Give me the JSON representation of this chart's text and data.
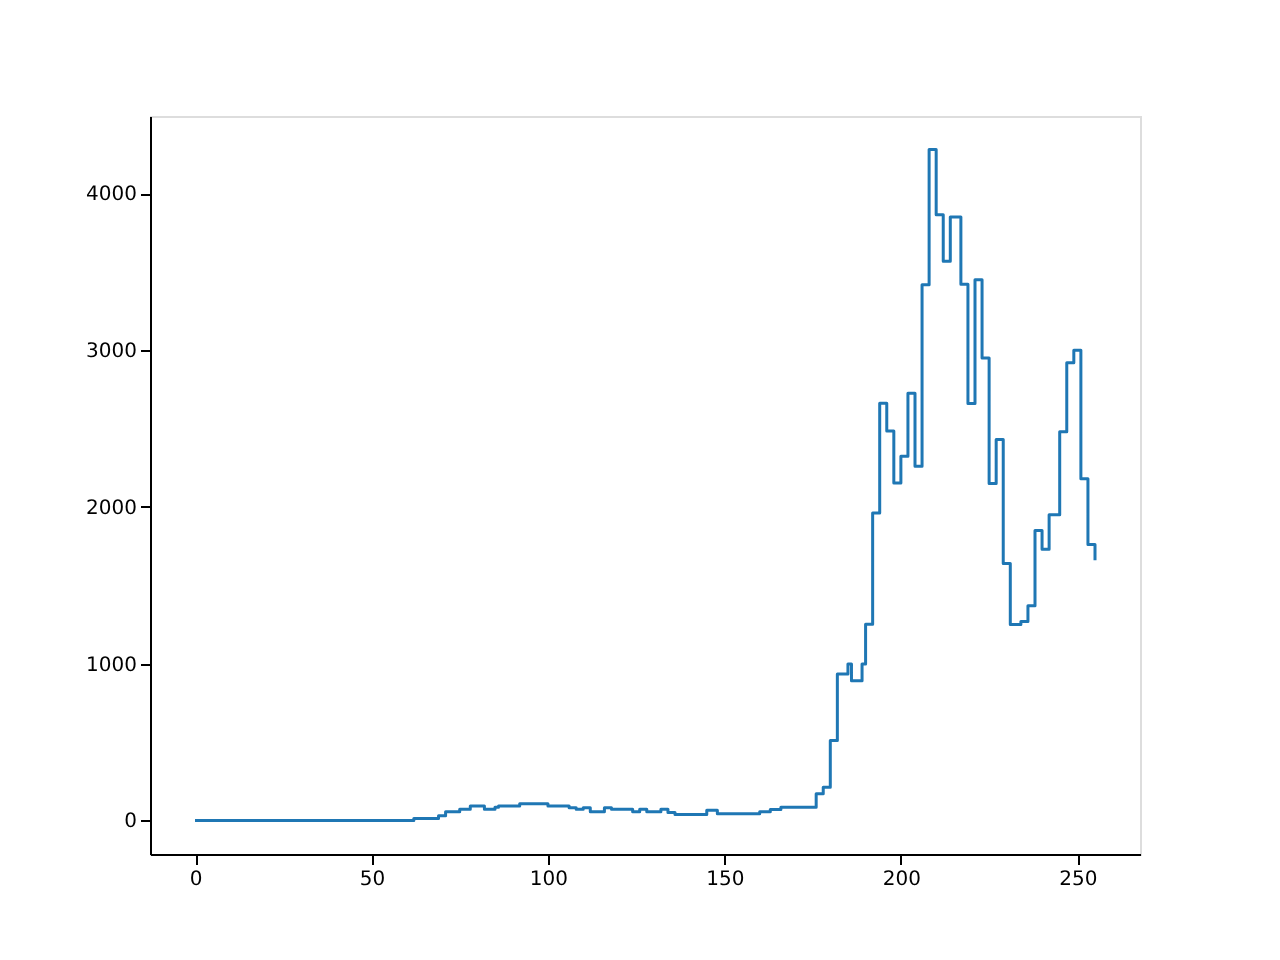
{
  "chart_data": {
    "type": "step",
    "xlim": [
      -12.75,
      267.75
    ],
    "ylim": [
      -214,
      4494
    ],
    "xticks": [
      0,
      50,
      100,
      150,
      200,
      250
    ],
    "yticks": [
      0,
      1000,
      2000,
      3000,
      4000
    ],
    "grid": false,
    "line_style": "solid",
    "series": [
      {
        "color": "#1f77b4",
        "x": [
          0,
          62,
          69,
          71,
          75,
          78,
          82,
          85,
          86,
          92,
          100,
          106,
          108,
          110,
          112,
          116,
          118,
          124,
          126,
          128,
          132,
          134,
          136,
          145,
          148,
          160,
          163,
          166,
          176,
          178,
          180,
          182,
          185,
          186,
          189,
          190,
          192,
          194,
          196,
          198,
          200,
          202,
          204,
          206,
          208,
          210,
          212,
          214,
          217,
          219,
          221,
          223,
          225,
          227,
          229,
          231,
          234,
          236,
          238,
          240,
          242,
          245,
          247,
          249,
          251,
          253,
          255
        ],
        "values": [
          0,
          13,
          30,
          55,
          72,
          93,
          72,
          85,
          93,
          106,
          93,
          81,
          72,
          81,
          55,
          81,
          72,
          55,
          72,
          55,
          72,
          50,
          38,
          65,
          42,
          55,
          70,
          85,
          170,
          212,
          510,
          934,
          998,
          892,
          998,
          1252,
          1962,
          2662,
          2484,
          2153,
          2323,
          2726,
          2259,
          3418,
          4280,
          3864,
          3567,
          3850,
          3420,
          2660,
          3450,
          2950,
          2150,
          2430,
          1640,
          1250,
          1270,
          1370,
          1850,
          1730,
          1950,
          2480,
          2920,
          3000,
          2180,
          1760,
          1660
        ]
      }
    ]
  }
}
